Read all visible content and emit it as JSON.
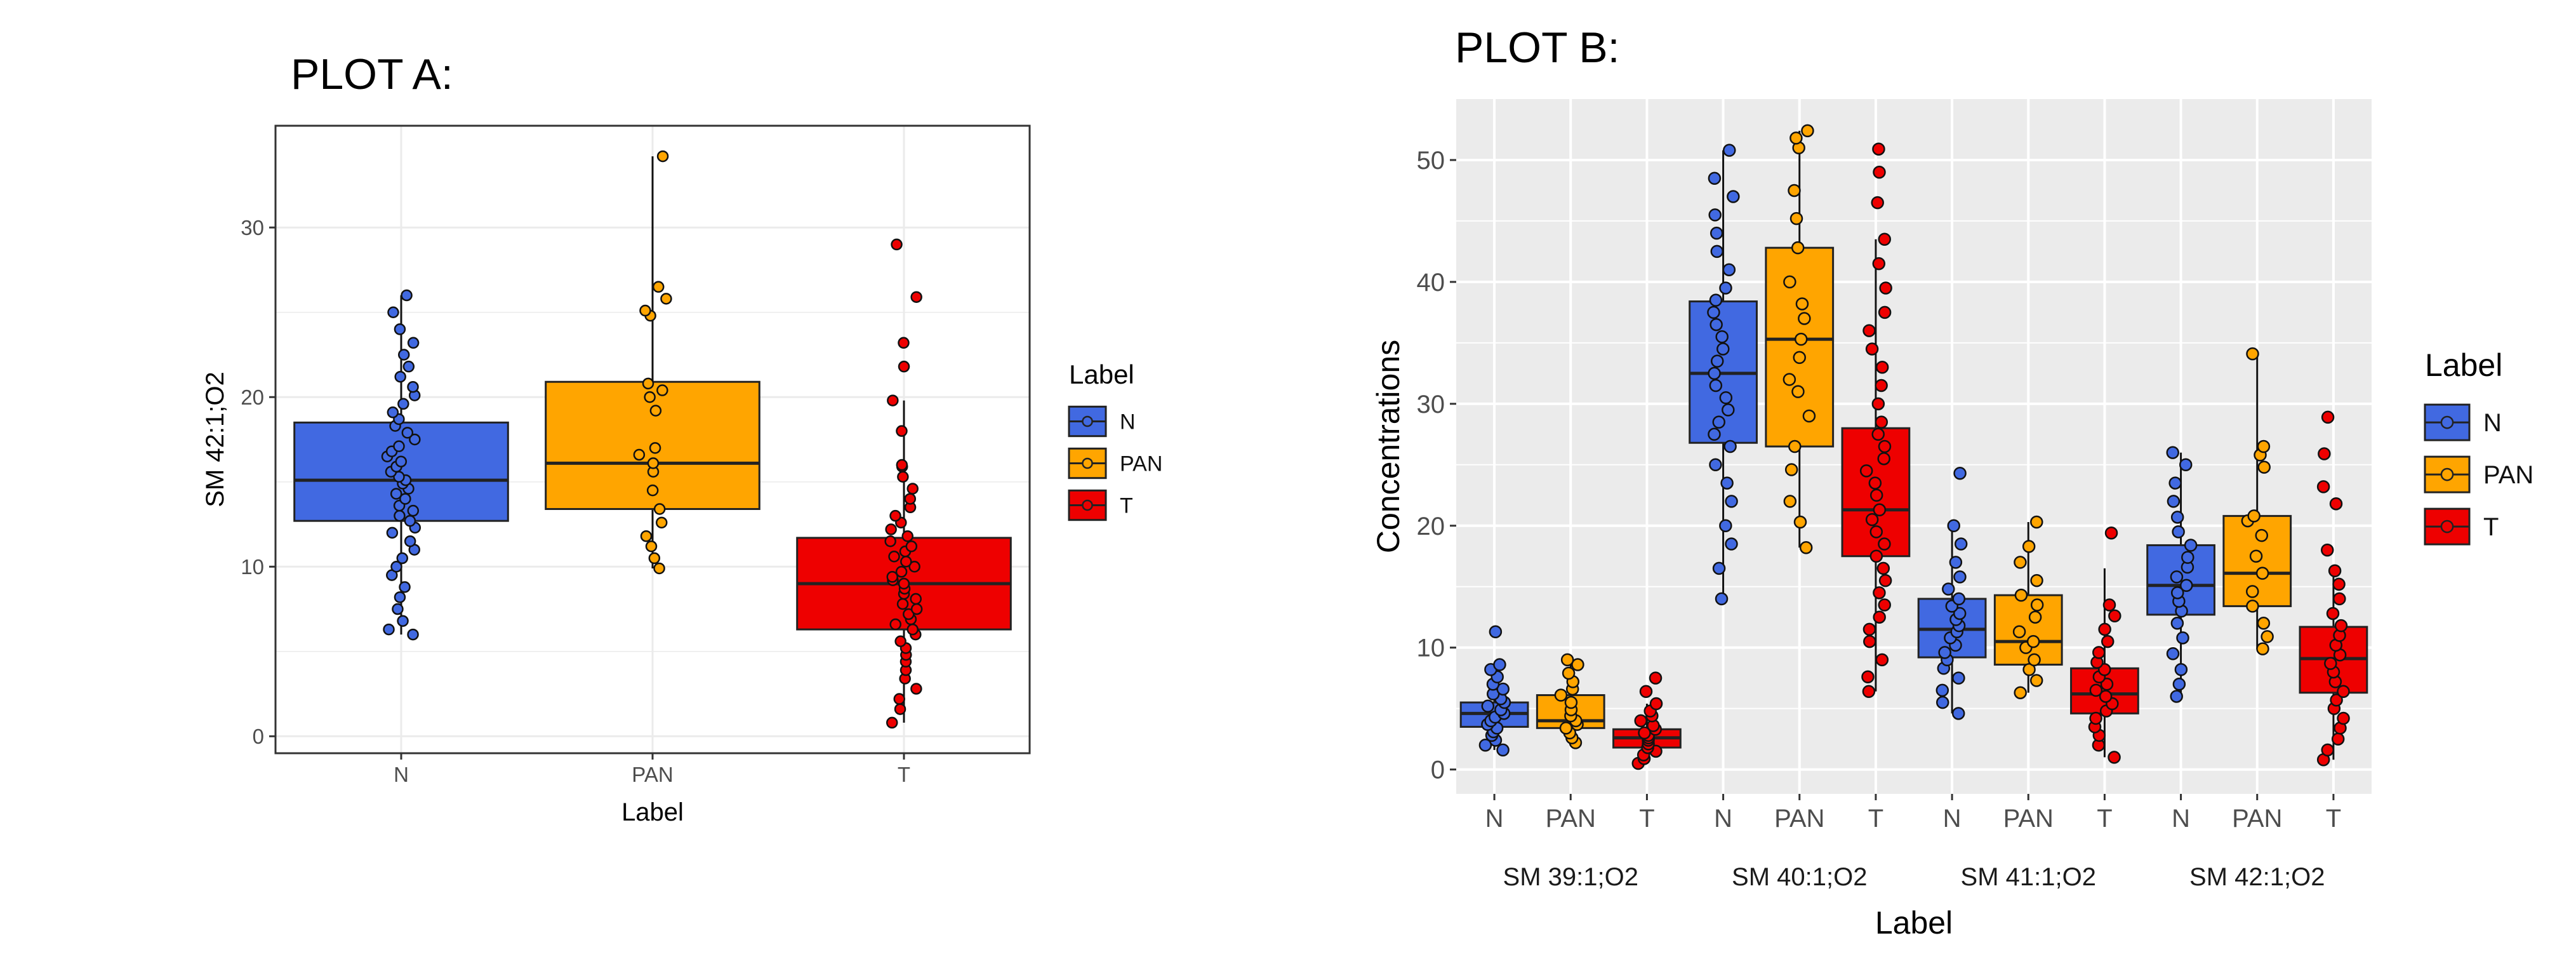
{
  "colors": {
    "N": "#4169E1",
    "PAN": "#FFA500",
    "T": "#EE0000",
    "panel_a_bg": "#FFFFFF",
    "panel_b_bg": "#EBEBEB",
    "grid_a": "#EBEBEB",
    "grid_b": "#FFFFFF",
    "text": "#000000",
    "tick_text_b": "#4D4D4D"
  },
  "chart_data": [
    {
      "type": "box",
      "panel_title": "PLOT A:",
      "xlabel": "Label",
      "ylabel": "SM 42:1;O2",
      "ylim": [
        -1,
        36
      ],
      "yticks": [
        0,
        10,
        20,
        30
      ],
      "categories": [
        "N",
        "PAN",
        "T"
      ],
      "grid": true,
      "legend": {
        "title": "Label",
        "position": "right",
        "entries": [
          "N",
          "PAN",
          "T"
        ]
      },
      "boxes": [
        {
          "category": "N",
          "q1": 12.7,
          "median": 15.1,
          "q3": 18.5,
          "whisker_low": 6.0,
          "whisker_high": 26.0,
          "points": [
            6.0,
            6.3,
            6.8,
            7.5,
            8.2,
            8.8,
            9.5,
            10.0,
            10.5,
            11.0,
            11.5,
            12.0,
            12.3,
            12.7,
            13.0,
            13.3,
            13.6,
            14.0,
            14.3,
            14.6,
            14.9,
            15.1,
            15.3,
            15.6,
            15.9,
            16.2,
            16.5,
            16.8,
            17.1,
            17.5,
            17.9,
            18.3,
            18.7,
            19.1,
            19.6,
            20.1,
            20.6,
            21.2,
            21.8,
            22.5,
            23.2,
            24.0,
            25.0,
            26.0
          ]
        },
        {
          "category": "PAN",
          "q1": 13.4,
          "median": 16.1,
          "q3": 20.9,
          "whisker_low": 9.9,
          "whisker_high": 34.2,
          "points": [
            9.9,
            10.5,
            11.2,
            11.8,
            12.6,
            13.4,
            14.5,
            15.6,
            16.1,
            16.6,
            17.0,
            19.2,
            20.0,
            20.4,
            20.8,
            24.8,
            25.1,
            25.8,
            26.5,
            34.2
          ]
        },
        {
          "category": "T",
          "q1": 6.3,
          "median": 9.0,
          "q3": 11.7,
          "whisker_low": 0.8,
          "whisker_high": 19.8,
          "points": [
            0.8,
            1.6,
            2.2,
            2.8,
            3.4,
            3.9,
            4.4,
            4.8,
            5.2,
            5.6,
            6.0,
            6.3,
            6.6,
            6.9,
            7.2,
            7.5,
            7.8,
            8.1,
            8.4,
            8.7,
            9.0,
            9.2,
            9.4,
            9.7,
            10.0,
            10.3,
            10.6,
            10.9,
            11.2,
            11.5,
            11.8,
            12.2,
            12.6,
            13.0,
            13.5,
            14.0,
            14.6,
            15.3,
            15.9,
            16.0,
            18.0,
            19.8,
            21.8,
            23.2,
            25.9,
            29.0
          ]
        }
      ]
    },
    {
      "type": "box",
      "panel_title": "PLOT B:",
      "xlabel": "Label",
      "ylabel": "Concentrations",
      "ylim": [
        -2,
        55
      ],
      "yticks": [
        0,
        10,
        20,
        30,
        40,
        50
      ],
      "groups": [
        "SM 39:1;O2",
        "SM 40:1;O2",
        "SM 41:1;O2",
        "SM 42:1;O2"
      ],
      "categories": [
        "N",
        "PAN",
        "T"
      ],
      "grid": true,
      "legend": {
        "title": "Label",
        "position": "right",
        "entries": [
          "N",
          "PAN",
          "T"
        ]
      },
      "boxes": [
        {
          "group": "SM 39:1;O2",
          "category": "N",
          "q1": 3.5,
          "median": 4.6,
          "q3": 5.5,
          "whisker_low": 1.6,
          "whisker_high": 8.6,
          "points": [
            1.6,
            2.0,
            2.4,
            2.8,
            3.1,
            3.4,
            3.7,
            4.0,
            4.3,
            4.6,
            4.9,
            5.2,
            5.5,
            5.8,
            6.2,
            6.6,
            7.0,
            7.6,
            8.2,
            8.6,
            11.3
          ]
        },
        {
          "group": "SM 39:1;O2",
          "category": "PAN",
          "q1": 3.4,
          "median": 4.0,
          "q3": 6.1,
          "whisker_low": 2.2,
          "whisker_high": 9.0,
          "points": [
            2.2,
            2.6,
            3.0,
            3.4,
            3.7,
            4.0,
            4.4,
            4.9,
            5.5,
            6.1,
            6.6,
            7.2,
            7.9,
            8.6,
            9.0
          ]
        },
        {
          "group": "SM 39:1;O2",
          "category": "T",
          "q1": 1.8,
          "median": 2.6,
          "q3": 3.3,
          "whisker_low": 0.5,
          "whisker_high": 5.4,
          "points": [
            0.5,
            0.9,
            1.2,
            1.5,
            1.8,
            2.1,
            2.4,
            2.6,
            2.8,
            3.0,
            3.3,
            3.6,
            4.0,
            4.4,
            4.8,
            5.4,
            6.4,
            7.5
          ]
        },
        {
          "group": "SM 40:1;O2",
          "category": "N",
          "q1": 26.8,
          "median": 32.5,
          "q3": 38.4,
          "whisker_low": 14.0,
          "whisker_high": 50.8,
          "points": [
            14.0,
            16.5,
            18.5,
            20.0,
            22.0,
            23.5,
            25.0,
            26.5,
            27.5,
            28.5,
            29.5,
            30.5,
            31.5,
            32.5,
            33.5,
            34.5,
            35.5,
            36.5,
            37.5,
            38.5,
            39.5,
            41.0,
            42.5,
            44.0,
            45.5,
            47.0,
            48.5,
            50.8
          ]
        },
        {
          "group": "SM 40:1;O2",
          "category": "PAN",
          "q1": 26.5,
          "median": 35.3,
          "q3": 42.8,
          "whisker_low": 18.2,
          "whisker_high": 52.4,
          "points": [
            18.2,
            20.3,
            22.0,
            24.6,
            26.5,
            29.0,
            31.0,
            32.0,
            33.8,
            35.3,
            37.0,
            38.2,
            40.0,
            42.8,
            45.2,
            47.5,
            51.0,
            51.8,
            52.4
          ]
        },
        {
          "group": "SM 40:1;O2",
          "category": "T",
          "q1": 17.5,
          "median": 21.3,
          "q3": 28.0,
          "whisker_low": 6.4,
          "whisker_high": 43.5,
          "points": [
            6.4,
            7.6,
            9.0,
            10.5,
            11.5,
            12.5,
            13.5,
            14.5,
            15.5,
            16.5,
            17.5,
            18.5,
            19.5,
            20.5,
            21.3,
            22.5,
            23.5,
            24.5,
            25.5,
            26.5,
            27.5,
            28.5,
            30.0,
            31.5,
            33.0,
            34.5,
            36.0,
            37.5,
            39.5,
            41.5,
            43.5,
            46.5,
            49.0,
            50.9
          ]
        },
        {
          "group": "SM 41:1;O2",
          "category": "N",
          "q1": 9.2,
          "median": 11.5,
          "q3": 14.0,
          "whisker_low": 4.6,
          "whisker_high": 20.0,
          "points": [
            4.6,
            5.5,
            6.5,
            7.5,
            8.3,
            9.0,
            9.6,
            10.2,
            10.8,
            11.3,
            11.8,
            12.3,
            12.8,
            13.4,
            14.0,
            14.8,
            15.8,
            17.0,
            18.5,
            20.0,
            24.3
          ]
        },
        {
          "group": "SM 41:1;O2",
          "category": "PAN",
          "q1": 8.6,
          "median": 10.5,
          "q3": 14.3,
          "whisker_low": 6.3,
          "whisker_high": 20.3,
          "points": [
            6.3,
            7.3,
            8.2,
            9.0,
            10.0,
            10.5,
            11.3,
            12.5,
            13.5,
            14.3,
            15.5,
            17.0,
            18.3,
            20.3
          ]
        },
        {
          "group": "SM 41:1;O2",
          "category": "T",
          "q1": 4.6,
          "median": 6.2,
          "q3": 8.3,
          "whisker_low": 1.0,
          "whisker_high": 16.5,
          "points": [
            1.0,
            2.0,
            2.8,
            3.5,
            4.2,
            4.8,
            5.4,
            6.0,
            6.5,
            7.0,
            7.6,
            8.2,
            8.8,
            9.6,
            10.5,
            11.5,
            12.6,
            13.5,
            19.4
          ]
        },
        {
          "group": "SM 42:1;O2",
          "category": "N",
          "q1": 12.7,
          "median": 15.1,
          "q3": 18.4,
          "whisker_low": 6.0,
          "whisker_high": 26.0,
          "points": [
            6.0,
            7.0,
            8.2,
            9.5,
            10.8,
            12.0,
            13.0,
            13.8,
            14.5,
            15.1,
            15.8,
            16.6,
            17.4,
            18.4,
            19.5,
            20.7,
            22.0,
            23.5,
            25.0,
            26.0
          ]
        },
        {
          "group": "SM 42:1;O2",
          "category": "PAN",
          "q1": 13.4,
          "median": 16.1,
          "q3": 20.8,
          "whisker_low": 9.9,
          "whisker_high": 34.1,
          "points": [
            9.9,
            10.9,
            12.0,
            13.4,
            14.6,
            16.1,
            17.5,
            19.2,
            20.4,
            20.8,
            24.8,
            25.8,
            26.5,
            34.1
          ]
        },
        {
          "group": "SM 42:1;O2",
          "category": "T",
          "q1": 6.3,
          "median": 9.1,
          "q3": 11.7,
          "whisker_low": 0.8,
          "whisker_high": 16.3,
          "points": [
            0.8,
            1.6,
            2.5,
            3.4,
            4.2,
            5.0,
            5.7,
            6.4,
            7.2,
            8.0,
            8.7,
            9.4,
            10.2,
            11.0,
            11.8,
            12.8,
            14.0,
            15.2,
            16.3,
            18.0,
            21.8,
            23.2,
            25.9,
            28.9
          ]
        }
      ]
    }
  ]
}
